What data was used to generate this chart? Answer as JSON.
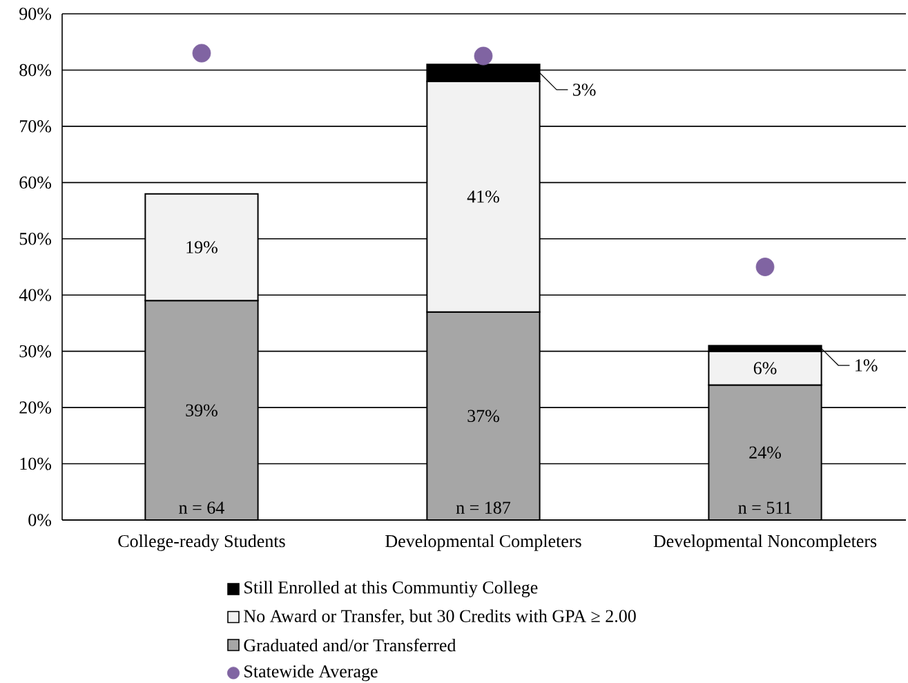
{
  "chart_data": {
    "type": "bar",
    "stacked": true,
    "categories": [
      "College-ready Students",
      "Developmental Completers",
      "Developmental Noncompleters"
    ],
    "series": [
      {
        "name": "Graduated and/or Transferred",
        "color": "#a6a6a6",
        "values": [
          39,
          37,
          24
        ],
        "value_labels": [
          "39%",
          "37%",
          "24%"
        ]
      },
      {
        "name": "No Award or Transfer, but 30 Credits with GPA ≥ 2.00",
        "color": "#f2f2f2",
        "values": [
          19,
          41,
          6
        ],
        "value_labels": [
          "19%",
          "41%",
          "6%"
        ]
      },
      {
        "name": "Still Enrolled at this Communtiy College",
        "color": "#000000",
        "values": [
          null,
          3,
          1
        ],
        "value_labels": [
          null,
          "3%",
          "1%"
        ]
      },
      {
        "name": "Statewide Average",
        "type": "scatter",
        "marker": "circle",
        "color": "#8064a2",
        "x": [
          "College-ready Students",
          "Developmental Completers",
          "Developmental Noncompleters"
        ],
        "values": [
          83,
          82.5,
          45
        ]
      }
    ],
    "ylim": [
      0,
      90
    ],
    "yticks": [
      {
        "value": 0,
        "label": "0%"
      },
      {
        "value": 10,
        "label": "10%"
      },
      {
        "value": 20,
        "label": "20%"
      },
      {
        "value": 30,
        "label": "30%"
      },
      {
        "value": 40,
        "label": "40%"
      },
      {
        "value": 50,
        "label": "50%"
      },
      {
        "value": 60,
        "label": "60%"
      },
      {
        "value": 70,
        "label": "70%"
      },
      {
        "value": 80,
        "label": "80%"
      },
      {
        "value": 90,
        "label": "90%"
      }
    ],
    "grid": "y",
    "legend": "bottom",
    "annotations": [
      "n = 64",
      "n = 187",
      "n = 511"
    ]
  }
}
